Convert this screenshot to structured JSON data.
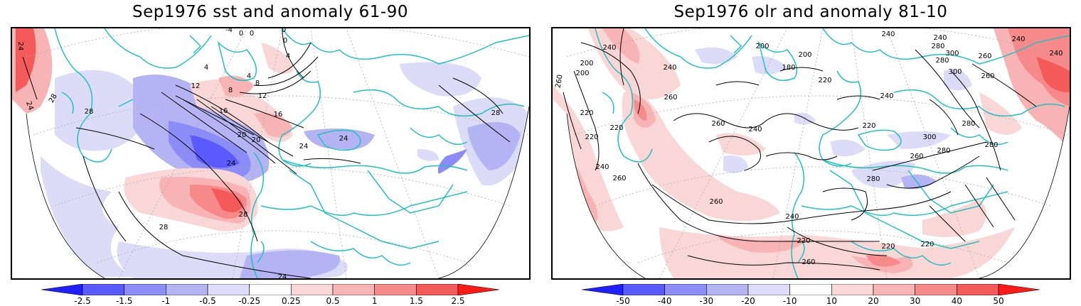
{
  "left_panel": {
    "title": "Sep1976 sst and anomaly 61-90",
    "contour_labels": [
      "24",
      "28",
      "24",
      "28",
      "-4",
      "0",
      "0",
      "0",
      "0",
      "4",
      "4",
      "4",
      "8",
      "8",
      "12",
      "12",
      "16",
      "16",
      "20",
      "20",
      "24",
      "24",
      "24",
      "28",
      "28",
      "24",
      "28"
    ],
    "colorbar": {
      "tick_labels": [
        "-2.5",
        "-1.5",
        "-1",
        "-0.5",
        "-0.25",
        "0.25",
        "0.5",
        "1",
        "1.5",
        "2.5"
      ],
      "colors": [
        "#1f1fff",
        "#5a5aff",
        "#8c8cf8",
        "#b4b4f4",
        "#dcdcf8",
        "#ffffff",
        "#fad7d7",
        "#f8b4b4",
        "#f68a8a",
        "#f45a5a",
        "#ff1a1a"
      ]
    }
  },
  "right_panel": {
    "title": "Sep1976 olr and anomaly 81-10",
    "contour_labels": [
      "240",
      "200",
      "200",
      "260",
      "240",
      "200",
      "180",
      "200",
      "220",
      "240",
      "240",
      "280",
      "300",
      "260",
      "300",
      "240",
      "240",
      "280",
      "260",
      "220",
      "220",
      "240",
      "260",
      "220",
      "300",
      "260",
      "280",
      "280",
      "240",
      "220",
      "260",
      "280",
      "280",
      "240",
      "260",
      "260",
      "240",
      "220",
      "220",
      "220",
      "260"
    ],
    "colorbar": {
      "tick_labels": [
        "-50",
        "-40",
        "-30",
        "-20",
        "-10",
        "10",
        "20",
        "30",
        "40",
        "50"
      ],
      "colors": [
        "#1f1fff",
        "#5a5aff",
        "#8c8cf8",
        "#b4b4f4",
        "#dcdcf8",
        "#ffffff",
        "#fad7d7",
        "#f8b4b4",
        "#f68a8a",
        "#f45a5a",
        "#ff1a1a"
      ]
    }
  },
  "colors": {
    "coastline": "#22c0c0",
    "contour": "#000000",
    "gridline": "#aaaaaa"
  }
}
